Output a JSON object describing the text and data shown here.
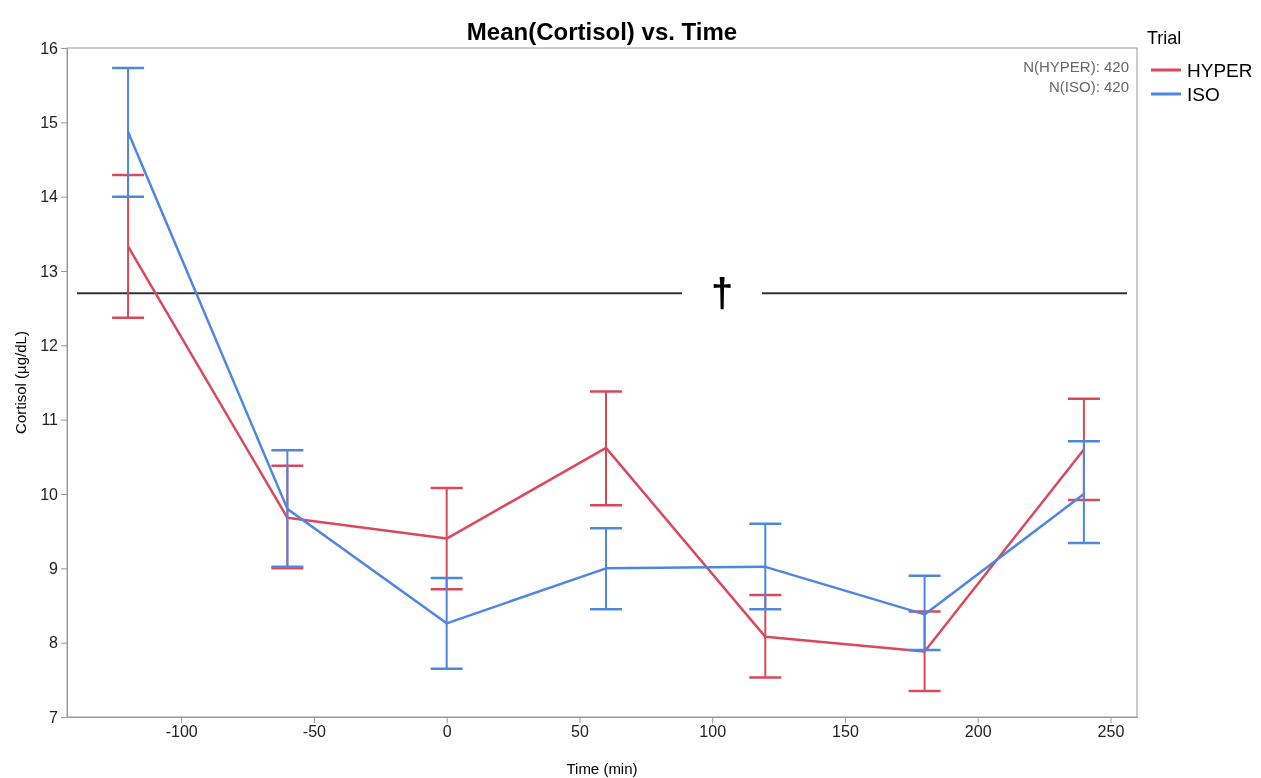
{
  "chart_data": {
    "type": "line",
    "title": "Mean(Cortisol) vs. Time",
    "xlabel": "Time (min)",
    "ylabel": "Cortisol (µg/dL)",
    "legend_title": "Trial",
    "legend": "right",
    "grid": false,
    "marker": "none",
    "line_style": "solid",
    "x": [
      -120,
      -60,
      0,
      60,
      120,
      180,
      240
    ],
    "xlim": [
      -143,
      260
    ],
    "xticks": [
      -100,
      -50,
      0,
      50,
      100,
      150,
      200,
      250
    ],
    "ylim": [
      7,
      16
    ],
    "yticks": [
      7,
      8,
      9,
      10,
      11,
      12,
      13,
      14,
      15,
      16
    ],
    "series": [
      {
        "name": "HYPER",
        "color": "#d9495c",
        "values": [
          13.33,
          9.68,
          9.4,
          10.62,
          8.08,
          7.88,
          10.6
        ],
        "errors": [
          [
            12.37,
            14.29
          ],
          [
            9.0,
            10.38
          ],
          [
            8.72,
            10.08
          ],
          [
            9.85,
            11.38
          ],
          [
            7.53,
            8.64
          ],
          [
            7.35,
            8.42
          ],
          [
            9.92,
            11.28
          ]
        ]
      },
      {
        "name": "ISO",
        "color": "#4f86e0",
        "values": [
          14.87,
          9.8,
          8.26,
          9.0,
          9.02,
          8.38,
          10.0
        ],
        "errors": [
          [
            14.0,
            15.73
          ],
          [
            9.02,
            10.59
          ],
          [
            7.65,
            8.87
          ],
          [
            8.45,
            9.54
          ],
          [
            8.45,
            9.6
          ],
          [
            7.9,
            8.9
          ],
          [
            9.34,
            10.71
          ]
        ]
      }
    ],
    "ref_lines": [
      {
        "axis": "y",
        "value": 12.7,
        "label": "†",
        "color": "#333333"
      }
    ],
    "annotations": [
      "N(HYPER): 420",
      "N(ISO): 420"
    ]
  }
}
